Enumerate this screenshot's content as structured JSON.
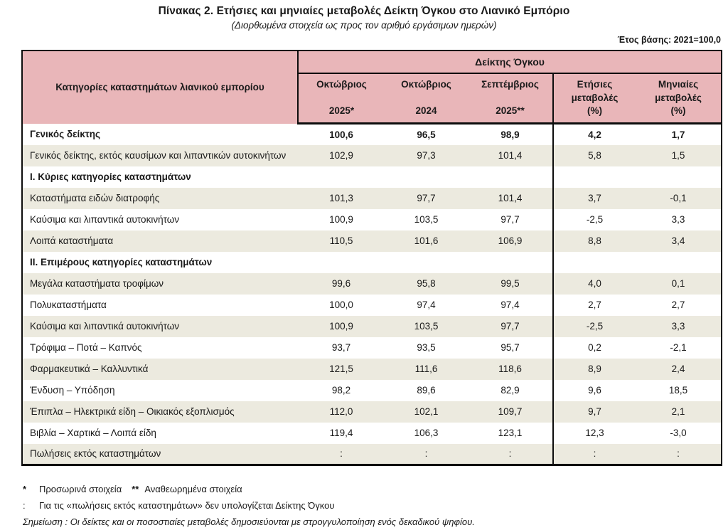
{
  "header": {
    "title": "Πίνακας 2. Ετήσιες και μηνιαίες μεταβολές Δείκτη Όγκου στο Λιανικό Εμπόριο",
    "subtitle": "(Διορθωμένα στοιχεία ως προς τον αριθμό εργάσιμων ημερών)",
    "base_year": "Έτος βάσης: 2021=100,0"
  },
  "table": {
    "category_header": "Κατηγορίες καταστημάτων λιανικού εμπορίου",
    "group_header": "Δείκτης Όγκου",
    "columns": [
      {
        "lines": [
          "Οκτώβριος",
          "2025*"
        ]
      },
      {
        "lines": [
          "Οκτώβριος",
          "2024"
        ]
      },
      {
        "lines": [
          "Σεπτέμβριος",
          "2025**"
        ]
      },
      {
        "lines": [
          "Ετήσιες",
          "μεταβολές",
          "(%)"
        ]
      },
      {
        "lines": [
          "Μηνιαίες",
          "μεταβολές",
          "(%)"
        ]
      }
    ],
    "rows": [
      {
        "label": "Γενικός δείκτης",
        "values": [
          "100,6",
          "96,5",
          "98,9",
          "4,2",
          "1,7"
        ],
        "style": "general"
      },
      {
        "label": "Γενικός δείκτης, εκτός καυσίμων και λιπαντικών αυτοκινήτων",
        "values": [
          "102,9",
          "97,3",
          "101,4",
          "5,8",
          "1,5"
        ],
        "style": ""
      },
      {
        "label": "Ι. Κύριες κατηγορίες καταστημάτων",
        "values": [
          "",
          "",
          "",
          "",
          ""
        ],
        "style": "section"
      },
      {
        "label": "Καταστήματα ειδών διατροφής",
        "values": [
          "101,3",
          "97,7",
          "101,4",
          "3,7",
          "-0,1"
        ],
        "style": ""
      },
      {
        "label": "Καύσιμα και λιπαντικά αυτοκινήτων",
        "values": [
          "100,9",
          "103,5",
          "97,7",
          "-2,5",
          "3,3"
        ],
        "style": ""
      },
      {
        "label": "Λοιπά καταστήματα",
        "values": [
          "110,5",
          "101,6",
          "106,9",
          "8,8",
          "3,4"
        ],
        "style": ""
      },
      {
        "label": "ΙΙ. Επιμέρους κατηγορίες καταστημάτων",
        "values": [
          "",
          "",
          "",
          "",
          ""
        ],
        "style": "section"
      },
      {
        "label": "Μεγάλα καταστήματα τροφίμων",
        "values": [
          "99,6",
          "95,8",
          "99,5",
          "4,0",
          "0,1"
        ],
        "style": ""
      },
      {
        "label": "Πολυκαταστήματα",
        "values": [
          "100,0",
          "97,4",
          "97,4",
          "2,7",
          "2,7"
        ],
        "style": ""
      },
      {
        "label": "Καύσιμα και λιπαντικά αυτοκινήτων",
        "values": [
          "100,9",
          "103,5",
          "97,7",
          "-2,5",
          "3,3"
        ],
        "style": ""
      },
      {
        "label": "Τρόφιμα – Ποτά – Καπνός",
        "values": [
          "93,7",
          "93,5",
          "95,7",
          "0,2",
          "-2,1"
        ],
        "style": ""
      },
      {
        "label": "Φαρμακευτικά – Καλλυντικά",
        "values": [
          "121,5",
          "111,6",
          "118,6",
          "8,9",
          "2,4"
        ],
        "style": ""
      },
      {
        "label": "Ένδυση – Υπόδηση",
        "values": [
          "98,2",
          "89,6",
          "82,9",
          "9,6",
          "18,5"
        ],
        "style": ""
      },
      {
        "label": "Έπιπλα – Ηλεκτρικά είδη – Οικιακός εξοπλισμός",
        "values": [
          "112,0",
          "102,1",
          "109,7",
          "9,7",
          "2,1"
        ],
        "style": ""
      },
      {
        "label": "Βιβλία – Χαρτικά – Λοιπά είδη",
        "values": [
          "119,4",
          "106,3",
          "123,1",
          "12,3",
          "-3,0"
        ],
        "style": ""
      },
      {
        "label": "Πωλήσεις εκτός καταστημάτων",
        "values": [
          ":",
          ":",
          ":",
          ":",
          ":"
        ],
        "style": ""
      }
    ]
  },
  "footnotes": {
    "note1_symbol": "*",
    "note1_text": "Προσωρινά στοιχεία",
    "note1b_symbol": "**",
    "note1b_text": "Αναθεωρημένα στοιχεία",
    "note2_symbol": ":",
    "note2_text": "Για τις «πωλήσεις εκτός καταστημάτων» δεν υπολογίζεται Δείκτης Όγκου",
    "note3_text": "Σημείωση : Οι δείκτες και οι ποσοστιαίες μεταβολές δημοσιεύονται με στρογγυλοποίηση ενός δεκαδικού ψηφίου."
  },
  "colors": {
    "header_pink": "#e9b6b9",
    "row_beige": "#eceadf",
    "border": "#0d0d0d"
  }
}
